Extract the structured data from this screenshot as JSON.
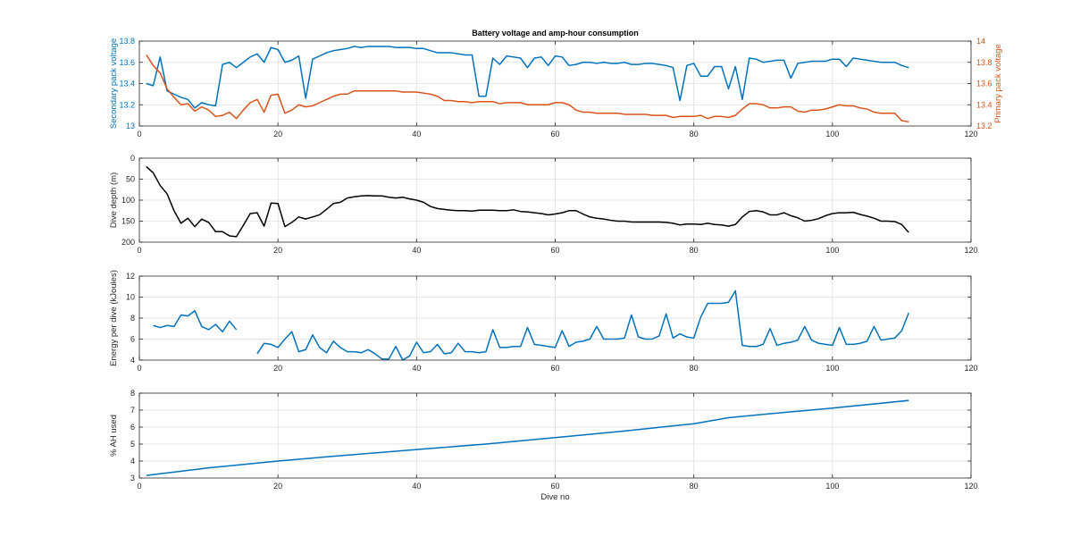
{
  "colors": {
    "blue": "#0072BD",
    "orange": "#D95319",
    "black": "#000000",
    "axis": "#262626"
  },
  "chart_data": [
    {
      "type": "line",
      "title": "Battery voltage and amp-hour consumption",
      "xlabel": "",
      "xlim": [
        0,
        120
      ],
      "xticks": [
        0,
        20,
        40,
        60,
        80,
        100,
        120
      ],
      "ylabel": "Secondary pack voltage",
      "ylim": [
        13,
        13.8
      ],
      "yticks": [
        "13",
        "13.2",
        "13.4",
        "13.6",
        "13.8"
      ],
      "ylabel_right": "Primary pack voltage",
      "ylim_right": [
        13.2,
        14
      ],
      "yticks_right": [
        "13.2",
        "13.4",
        "13.6",
        "13.8",
        "14"
      ],
      "grid": true,
      "series": [
        {
          "axis": "left",
          "color": "#0072BD",
          "x": [
            1,
            2,
            3,
            4,
            5,
            6,
            7,
            8,
            9,
            10,
            11,
            12,
            13,
            14,
            15,
            16,
            17,
            18,
            19,
            20,
            21,
            22,
            23,
            24,
            25,
            26,
            27,
            28,
            29,
            30,
            31,
            32,
            33,
            34,
            35,
            36,
            37,
            38,
            39,
            40,
            41,
            42,
            43,
            44,
            45,
            46,
            47,
            48,
            49,
            50,
            51,
            52,
            53,
            54,
            55,
            56,
            57,
            58,
            59,
            60,
            61,
            62,
            63,
            64,
            65,
            66,
            67,
            68,
            69,
            70,
            71,
            72,
            73,
            74,
            75,
            76,
            77,
            78,
            79,
            80,
            81,
            82,
            83,
            84,
            85,
            86,
            87,
            88,
            89,
            90,
            91,
            92,
            93,
            94,
            95,
            96,
            97,
            98,
            99,
            100,
            101,
            102,
            103,
            104,
            105,
            106,
            107,
            108,
            109,
            110,
            111
          ],
          "values": [
            13.4,
            13.38,
            13.65,
            13.33,
            13.3,
            13.27,
            13.25,
            13.17,
            13.22,
            13.2,
            13.19,
            13.58,
            13.6,
            13.55,
            13.6,
            13.65,
            13.68,
            13.6,
            13.74,
            13.72,
            13.6,
            13.62,
            13.66,
            13.26,
            13.63,
            13.66,
            13.69,
            13.71,
            13.72,
            13.73,
            13.75,
            13.74,
            13.75,
            13.75,
            13.75,
            13.75,
            13.74,
            13.74,
            13.74,
            13.73,
            13.73,
            13.71,
            13.69,
            13.69,
            13.69,
            13.68,
            13.67,
            13.67,
            13.28,
            13.28,
            13.64,
            13.58,
            13.66,
            13.65,
            13.64,
            13.55,
            13.64,
            13.65,
            13.57,
            13.66,
            13.65,
            13.57,
            13.58,
            13.6,
            13.6,
            13.59,
            13.6,
            13.59,
            13.59,
            13.6,
            13.58,
            13.58,
            13.59,
            13.59,
            13.58,
            13.57,
            13.55,
            13.24,
            13.57,
            13.59,
            13.47,
            13.47,
            13.56,
            13.56,
            13.35,
            13.56,
            13.25,
            13.64,
            13.63,
            13.6,
            13.61,
            13.62,
            13.62,
            13.45,
            13.59,
            13.6,
            13.61,
            13.61,
            13.61,
            13.63,
            13.63,
            13.56,
            13.64,
            13.63,
            13.62,
            13.61,
            13.6,
            13.6,
            13.6,
            13.57,
            13.55
          ]
        },
        {
          "axis": "right",
          "color": "#D95319",
          "x": [
            1,
            2,
            3,
            4,
            5,
            6,
            7,
            8,
            9,
            10,
            11,
            12,
            13,
            14,
            15,
            16,
            17,
            18,
            19,
            20,
            21,
            22,
            23,
            24,
            25,
            26,
            27,
            28,
            29,
            30,
            31,
            32,
            33,
            34,
            35,
            36,
            37,
            38,
            39,
            40,
            41,
            42,
            43,
            44,
            45,
            46,
            47,
            48,
            49,
            50,
            51,
            52,
            53,
            54,
            55,
            56,
            57,
            58,
            59,
            60,
            61,
            62,
            63,
            64,
            65,
            66,
            67,
            68,
            69,
            70,
            71,
            72,
            73,
            74,
            75,
            76,
            77,
            78,
            79,
            80,
            81,
            82,
            83,
            84,
            85,
            86,
            87,
            88,
            89,
            90,
            91,
            92,
            93,
            94,
            95,
            96,
            97,
            98,
            99,
            100,
            101,
            102,
            103,
            104,
            105,
            106,
            107,
            108,
            109,
            110,
            111
          ],
          "values": [
            13.87,
            13.77,
            13.7,
            13.55,
            13.47,
            13.4,
            13.41,
            13.34,
            13.38,
            13.35,
            13.29,
            13.3,
            13.33,
            13.27,
            13.35,
            13.42,
            13.45,
            13.33,
            13.49,
            13.5,
            13.32,
            13.35,
            13.4,
            13.38,
            13.39,
            13.42,
            13.45,
            13.48,
            13.5,
            13.5,
            13.53,
            13.53,
            13.53,
            13.53,
            13.53,
            13.53,
            13.53,
            13.52,
            13.52,
            13.52,
            13.51,
            13.5,
            13.48,
            13.44,
            13.44,
            13.43,
            13.43,
            13.42,
            13.43,
            13.43,
            13.43,
            13.41,
            13.42,
            13.42,
            13.42,
            13.4,
            13.4,
            13.4,
            13.4,
            13.42,
            13.42,
            13.4,
            13.35,
            13.33,
            13.33,
            13.32,
            13.32,
            13.32,
            13.32,
            13.31,
            13.31,
            13.31,
            13.31,
            13.3,
            13.3,
            13.3,
            13.28,
            13.29,
            13.29,
            13.29,
            13.3,
            13.27,
            13.29,
            13.29,
            13.28,
            13.3,
            13.36,
            13.41,
            13.41,
            13.4,
            13.37,
            13.37,
            13.38,
            13.38,
            13.34,
            13.33,
            13.35,
            13.35,
            13.36,
            13.38,
            13.4,
            13.39,
            13.39,
            13.37,
            13.36,
            13.33,
            13.32,
            13.32,
            13.32,
            13.25,
            13.24
          ]
        }
      ]
    },
    {
      "type": "line",
      "title": "",
      "xlabel": "",
      "xlim": [
        0,
        120
      ],
      "xticks": [
        0,
        20,
        40,
        60,
        80,
        100,
        120
      ],
      "ylabel": "Dive depth (m)",
      "ylim": [
        0,
        200
      ],
      "reversed_y": true,
      "yticks": [
        "0",
        "50",
        "100",
        "150",
        "200"
      ],
      "grid": true,
      "series": [
        {
          "color": "#000000",
          "x": [
            1,
            2,
            3,
            4,
            5,
            6,
            7,
            8,
            9,
            10,
            11,
            12,
            13,
            14,
            15,
            16,
            17,
            18,
            19,
            20,
            21,
            22,
            23,
            24,
            25,
            26,
            27,
            28,
            29,
            30,
            31,
            32,
            33,
            34,
            35,
            36,
            37,
            38,
            39,
            40,
            41,
            42,
            43,
            44,
            45,
            46,
            47,
            48,
            49,
            50,
            51,
            52,
            53,
            54,
            55,
            56,
            57,
            58,
            59,
            60,
            61,
            62,
            63,
            64,
            65,
            66,
            67,
            68,
            69,
            70,
            71,
            72,
            73,
            74,
            75,
            76,
            77,
            78,
            79,
            80,
            81,
            82,
            83,
            84,
            85,
            86,
            87,
            88,
            89,
            90,
            91,
            92,
            93,
            94,
            95,
            96,
            97,
            98,
            99,
            100,
            101,
            102,
            103,
            104,
            105,
            106,
            107,
            108,
            109,
            110,
            111
          ],
          "values": [
            20,
            35,
            65,
            85,
            125,
            155,
            143,
            163,
            145,
            153,
            175,
            175,
            185,
            187,
            160,
            132,
            130,
            162,
            107,
            108,
            163,
            153,
            140,
            145,
            140,
            135,
            122,
            108,
            105,
            95,
            92,
            90,
            89,
            90,
            90,
            93,
            95,
            93,
            97,
            100,
            105,
            115,
            120,
            122,
            124,
            125,
            125,
            126,
            124,
            124,
            124,
            125,
            125,
            123,
            127,
            128,
            130,
            132,
            135,
            133,
            130,
            125,
            125,
            133,
            140,
            143,
            145,
            148,
            150,
            150,
            152,
            152,
            152,
            152,
            152,
            153,
            155,
            159,
            157,
            157,
            158,
            155,
            158,
            159,
            162,
            158,
            140,
            127,
            125,
            128,
            135,
            135,
            130,
            137,
            142,
            150,
            148,
            144,
            137,
            132,
            130,
            130,
            129,
            134,
            138,
            143,
            150,
            150,
            151,
            158,
            177
          ]
        }
      ]
    },
    {
      "type": "line",
      "title": "",
      "xlabel": "",
      "xlim": [
        0,
        120
      ],
      "xticks": [
        0,
        20,
        40,
        60,
        80,
        100,
        120
      ],
      "ylabel": "Energy per dive (kJoules)",
      "ylim": [
        4,
        12
      ],
      "yticks": [
        "4",
        "6",
        "8",
        "10",
        "12"
      ],
      "grid": true,
      "series": [
        {
          "color": "#0072BD",
          "segments": [
            {
              "x": [
                2,
                3,
                4,
                5,
                6,
                7,
                8,
                9,
                10,
                11,
                12,
                13,
                14
              ],
              "values": [
                7.3,
                7.1,
                7.3,
                7.2,
                8.3,
                8.2,
                8.7,
                7.2,
                6.9,
                7.4,
                6.7,
                7.7,
                6.9
              ]
            },
            {
              "x": [
                17,
                18,
                19,
                20,
                21,
                22,
                23,
                24,
                25,
                26,
                27,
                28,
                29,
                30,
                31,
                32,
                33,
                34,
                35,
                36,
                37,
                38,
                39,
                40,
                41,
                42,
                43,
                44,
                45,
                46,
                47,
                48,
                49,
                50,
                51,
                52,
                53,
                54,
                55,
                56,
                57,
                58,
                59,
                60,
                61,
                62,
                63,
                64,
                65,
                66,
                67,
                68,
                69,
                70,
                71,
                72,
                73,
                74,
                75,
                76,
                77,
                78,
                79,
                80,
                81,
                82,
                83,
                84,
                85,
                86,
                87,
                88,
                89,
                90,
                91,
                92,
                93,
                94,
                95,
                96,
                97,
                98,
                99,
                100,
                101,
                102,
                103,
                104,
                105,
                106,
                107,
                108,
                109,
                110,
                111
              ],
              "values": [
                4.6,
                5.6,
                5.5,
                5.2,
                6.0,
                6.7,
                4.8,
                5.0,
                6.4,
                5.2,
                4.7,
                5.8,
                5.2,
                4.8,
                4.8,
                4.7,
                5.0,
                4.6,
                4.1,
                4.1,
                5.3,
                4.0,
                4.4,
                5.7,
                4.7,
                4.8,
                5.5,
                4.6,
                4.7,
                5.6,
                4.8,
                4.8,
                4.7,
                4.8,
                6.9,
                5.2,
                5.2,
                5.3,
                5.3,
                7.1,
                5.5,
                5.4,
                5.3,
                5.2,
                6.8,
                5.3,
                5.7,
                5.8,
                6.0,
                7.2,
                6.0,
                6.0,
                6.0,
                6.1,
                8.3,
                6.2,
                6.0,
                6.0,
                6.3,
                8.4,
                6.1,
                6.5,
                6.2,
                6.1,
                8.1,
                9.4,
                9.4,
                9.4,
                9.5,
                10.6,
                5.4,
                5.3,
                5.3,
                5.5,
                7.0,
                5.4,
                5.6,
                5.7,
                5.9,
                7.2,
                5.9,
                5.6,
                5.5,
                5.4,
                7.1,
                5.5,
                5.5,
                5.6,
                5.8,
                7.2,
                5.9,
                6.0,
                6.1,
                6.8,
                8.5
              ]
            }
          ]
        }
      ]
    },
    {
      "type": "line",
      "title": "",
      "xlabel": "Dive no",
      "xlim": [
        0,
        120
      ],
      "xticks": [
        0,
        20,
        40,
        60,
        80,
        100,
        120
      ],
      "ylabel": "% AH used",
      "ylim": [
        3,
        8
      ],
      "yticks": [
        "3",
        "4",
        "5",
        "6",
        "7",
        "8"
      ],
      "grid": true,
      "series": [
        {
          "color": "#0072BD",
          "x": [
            1,
            10,
            20,
            30,
            40,
            50,
            60,
            70,
            80,
            85,
            90,
            100,
            111
          ],
          "values": [
            3.15,
            3.6,
            4.0,
            4.35,
            4.68,
            5.0,
            5.38,
            5.77,
            6.2,
            6.55,
            6.75,
            7.12,
            7.57
          ]
        }
      ]
    }
  ]
}
